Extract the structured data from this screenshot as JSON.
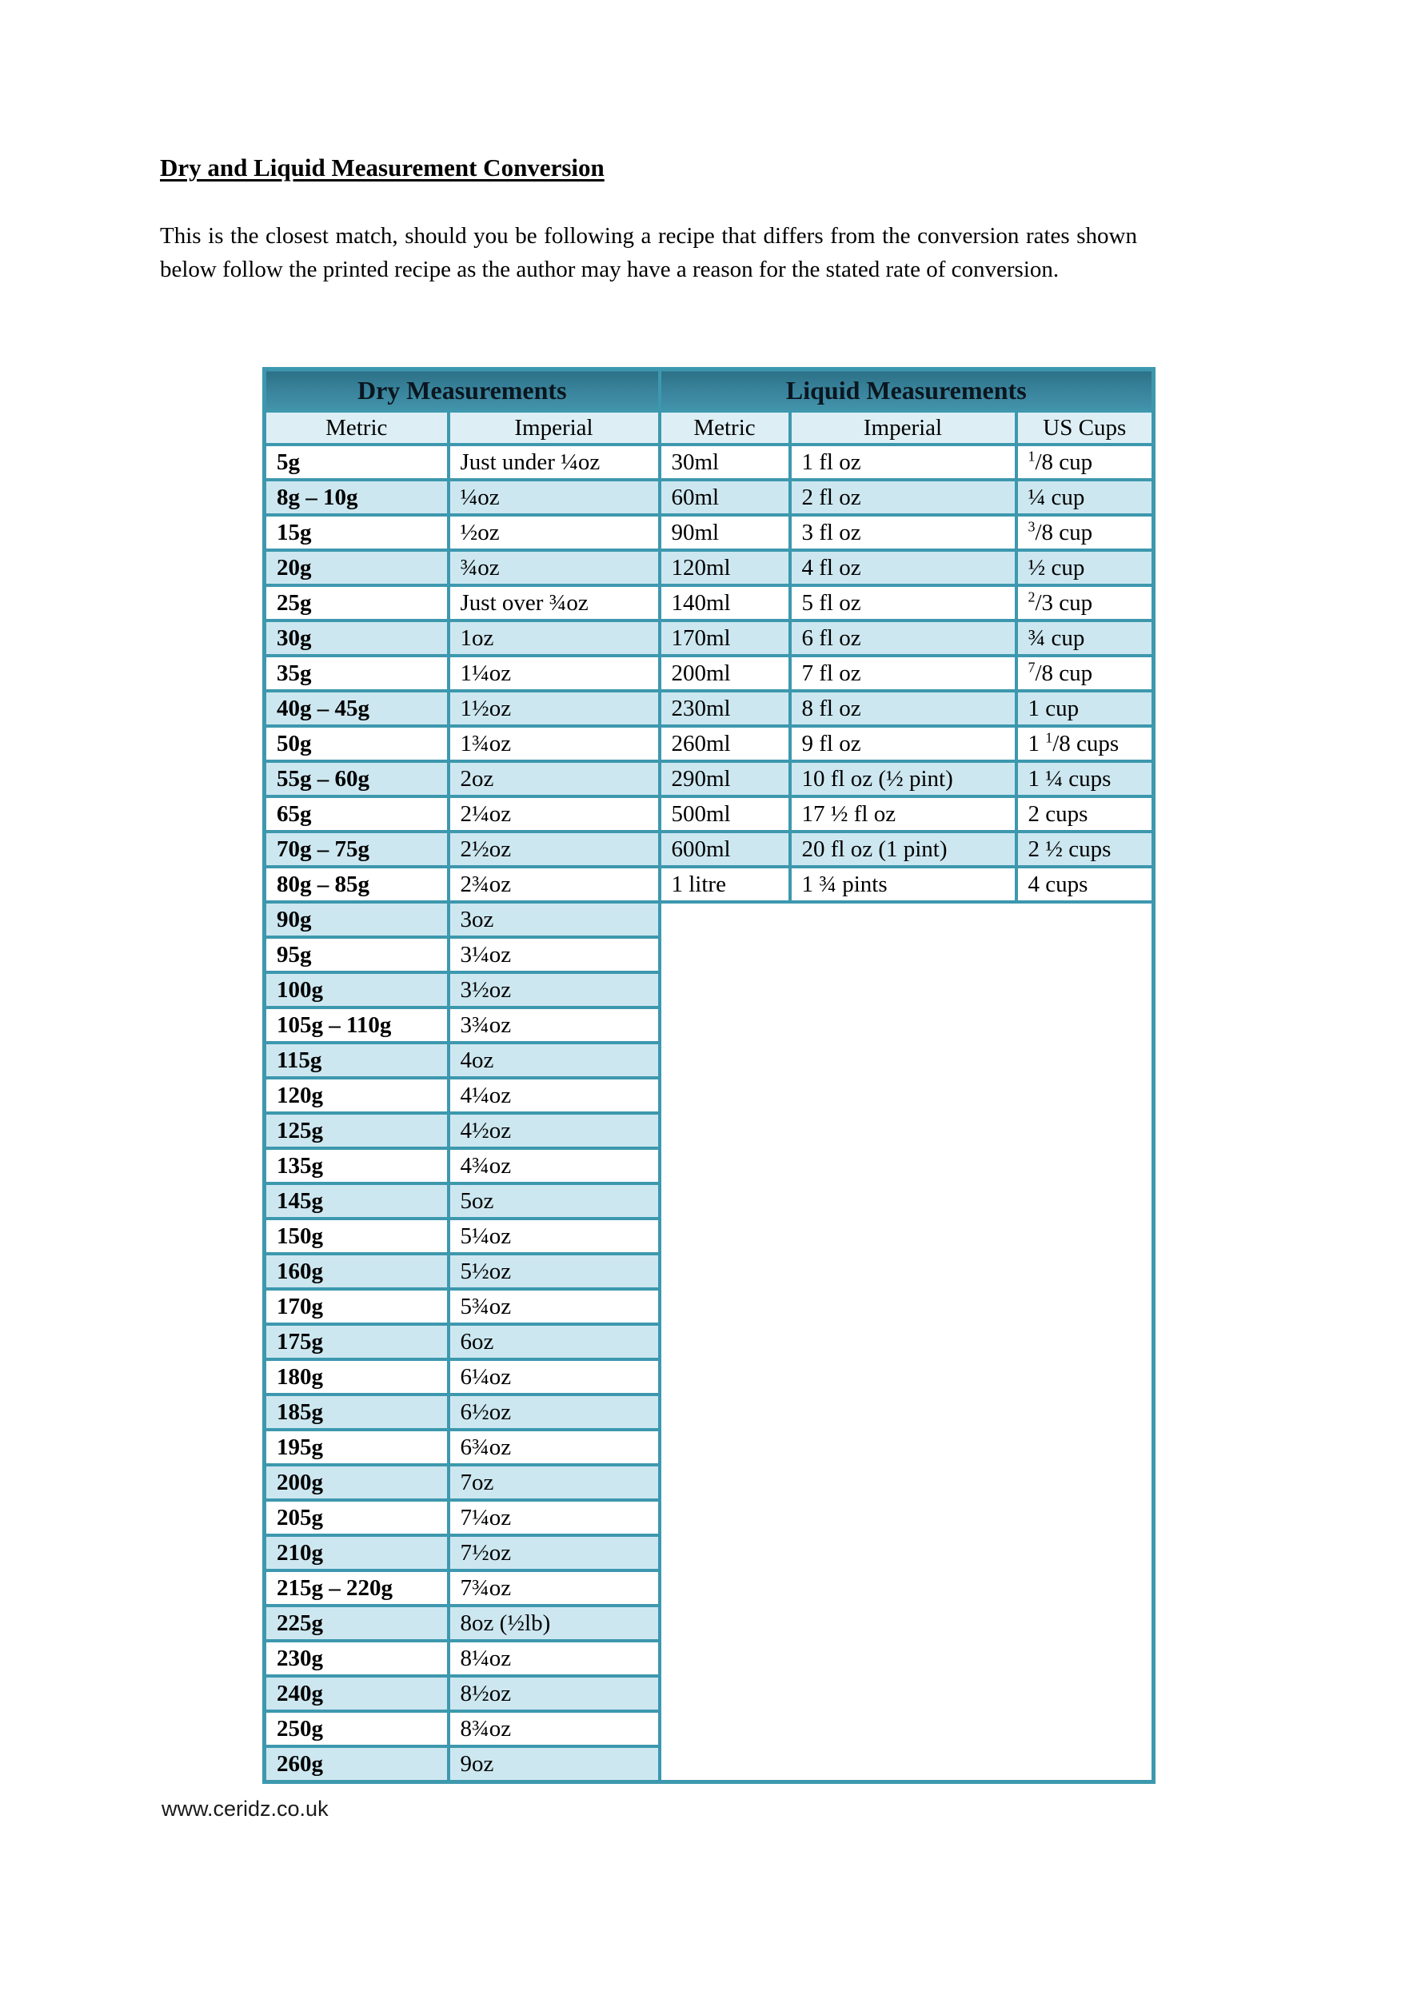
{
  "document": {
    "title": "Dry and Liquid Measurement Conversion",
    "intro": "This is the closest match, should you be following a recipe that differs from the conversion rates shown below follow the printed recipe as the author may have a reason for the stated rate of conversion.",
    "footer": "www.ceridz.co.uk"
  },
  "colors": {
    "header_teal": "#38829a",
    "header_teal_dark": "#2c7187",
    "subheader_light": "#ddeff5",
    "stripe_blue": "#cde7f0",
    "grid_border": "#3d98ae"
  },
  "table": {
    "group_headers": [
      {
        "label": "Dry Measurements",
        "span": 2
      },
      {
        "label": "Liquid Measurements",
        "span": 3
      }
    ],
    "column_headers": [
      "Metric",
      "Imperial",
      "Metric",
      "Imperial",
      "US Cups"
    ],
    "rows": [
      {
        "dry_metric": "5g",
        "dry_imperial": "Just under ¼oz",
        "liquid_metric": "30ml",
        "liquid_imperial": "1 fl oz",
        "us_cups": {
          "pre": "",
          "sup": "1",
          "post": "/8 cup"
        }
      },
      {
        "dry_metric": "8g – 10g",
        "dry_imperial": "¼oz",
        "liquid_metric": "60ml",
        "liquid_imperial": "2 fl oz",
        "us_cups": {
          "pre": "¼ cup",
          "sup": "",
          "post": ""
        }
      },
      {
        "dry_metric": "15g",
        "dry_imperial": "½oz",
        "liquid_metric": "90ml",
        "liquid_imperial": "3 fl oz",
        "us_cups": {
          "pre": "",
          "sup": "3",
          "post": "/8 cup"
        }
      },
      {
        "dry_metric": "20g",
        "dry_imperial": "¾oz",
        "liquid_metric": "120ml",
        "liquid_imperial": "4 fl oz",
        "us_cups": {
          "pre": "½ cup",
          "sup": "",
          "post": ""
        }
      },
      {
        "dry_metric": "25g",
        "dry_imperial": "Just over ¾oz",
        "liquid_metric": "140ml",
        "liquid_imperial": "5 fl oz",
        "us_cups": {
          "pre": "",
          "sup": "2",
          "post": "/3 cup"
        }
      },
      {
        "dry_metric": "30g",
        "dry_imperial": "1oz",
        "liquid_metric": "170ml",
        "liquid_imperial": "6 fl oz",
        "us_cups": {
          "pre": "¾ cup",
          "sup": "",
          "post": ""
        }
      },
      {
        "dry_metric": "35g",
        "dry_imperial": "1¼oz",
        "liquid_metric": "200ml",
        "liquid_imperial": "7 fl oz",
        "us_cups": {
          "pre": "",
          "sup": "7",
          "post": "/8 cup"
        }
      },
      {
        "dry_metric": "40g – 45g",
        "dry_imperial": "1½oz",
        "liquid_metric": "230ml",
        "liquid_imperial": "8 fl oz",
        "us_cups": {
          "pre": "1 cup",
          "sup": "",
          "post": ""
        }
      },
      {
        "dry_metric": "50g",
        "dry_imperial": "1¾oz",
        "liquid_metric": "260ml",
        "liquid_imperial": "9 fl oz",
        "us_cups": {
          "pre": "1 ",
          "sup": "1",
          "post": "/8 cups"
        }
      },
      {
        "dry_metric": "55g – 60g",
        "dry_imperial": "2oz",
        "liquid_metric": "290ml",
        "liquid_imperial": "10 fl oz (½ pint)",
        "us_cups": {
          "pre": "1 ¼ cups",
          "sup": "",
          "post": ""
        }
      },
      {
        "dry_metric": "65g",
        "dry_imperial": "2¼oz",
        "liquid_metric": "500ml",
        "liquid_imperial": "17 ½ fl oz",
        "us_cups": {
          "pre": "2 cups",
          "sup": "",
          "post": ""
        }
      },
      {
        "dry_metric": "70g – 75g",
        "dry_imperial": "2½oz",
        "liquid_metric": "600ml",
        "liquid_imperial": "20 fl oz (1 pint)",
        "us_cups": {
          "pre": "2 ½ cups",
          "sup": "",
          "post": ""
        }
      },
      {
        "dry_metric": "80g – 85g",
        "dry_imperial": "2¾oz",
        "liquid_metric": "1 litre",
        "liquid_imperial": "1 ¾ pints",
        "us_cups": {
          "pre": "4 cups",
          "sup": "",
          "post": ""
        }
      },
      {
        "dry_metric": "90g",
        "dry_imperial": "3oz"
      },
      {
        "dry_metric": "95g",
        "dry_imperial": "3¼oz"
      },
      {
        "dry_metric": "100g",
        "dry_imperial": "3½oz"
      },
      {
        "dry_metric": "105g – 110g",
        "dry_imperial": "3¾oz"
      },
      {
        "dry_metric": "115g",
        "dry_imperial": "4oz"
      },
      {
        "dry_metric": "120g",
        "dry_imperial": "4¼oz"
      },
      {
        "dry_metric": "125g",
        "dry_imperial": "4½oz"
      },
      {
        "dry_metric": "135g",
        "dry_imperial": "4¾oz"
      },
      {
        "dry_metric": "145g",
        "dry_imperial": "5oz"
      },
      {
        "dry_metric": "150g",
        "dry_imperial": "5¼oz"
      },
      {
        "dry_metric": "160g",
        "dry_imperial": "5½oz"
      },
      {
        "dry_metric": "170g",
        "dry_imperial": "5¾oz"
      },
      {
        "dry_metric": "175g",
        "dry_imperial": "6oz"
      },
      {
        "dry_metric": "180g",
        "dry_imperial": "6¼oz"
      },
      {
        "dry_metric": "185g",
        "dry_imperial": "6½oz"
      },
      {
        "dry_metric": "195g",
        "dry_imperial": "6¾oz"
      },
      {
        "dry_metric": "200g",
        "dry_imperial": "7oz"
      },
      {
        "dry_metric": "205g",
        "dry_imperial": "7¼oz"
      },
      {
        "dry_metric": "210g",
        "dry_imperial": "7½oz"
      },
      {
        "dry_metric": "215g – 220g",
        "dry_imperial": "7¾oz"
      },
      {
        "dry_metric": "225g",
        "dry_imperial": "8oz (½lb)"
      },
      {
        "dry_metric": "230g",
        "dry_imperial": "8¼oz"
      },
      {
        "dry_metric": "240g",
        "dry_imperial": "8½oz"
      },
      {
        "dry_metric": "250g",
        "dry_imperial": "8¾oz"
      },
      {
        "dry_metric": "260g",
        "dry_imperial": "9oz"
      }
    ]
  }
}
